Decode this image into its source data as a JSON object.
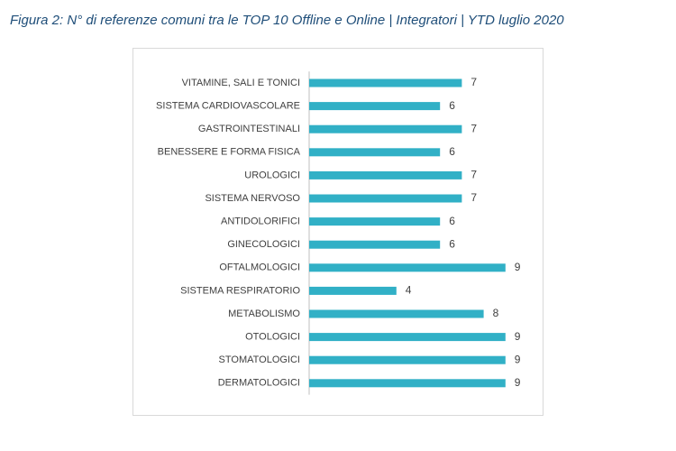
{
  "caption": "Figura 2: N° di referenze comuni tra le TOP 10 Offline e Online | Integratori | YTD luglio 2020",
  "colors": {
    "bar": "#31b0c6",
    "caption": "#1f4e79",
    "text": "#404040",
    "frame": "#d9d9d9"
  },
  "chart_data": {
    "type": "bar",
    "orientation": "horizontal",
    "title": "",
    "xlabel": "",
    "ylabel": "",
    "xlim": [
      0,
      10
    ],
    "grid": false,
    "legend": "none",
    "categories": [
      "VITAMINE, SALI E TONICI",
      "SISTEMA CARDIOVASCOLARE",
      "GASTROINTESTINALI",
      "BENESSERE E FORMA FISICA",
      "UROLOGICI",
      "SISTEMA NERVOSO",
      "ANTIDOLORIFICI",
      "GINECOLOGICI",
      "OFTALMOLOGICI",
      "SISTEMA RESPIRATORIO",
      "METABOLISMO",
      "OTOLOGICI",
      "STOMATOLOGICI",
      "DERMATOLOGICI"
    ],
    "values": [
      7,
      6,
      7,
      6,
      7,
      7,
      6,
      6,
      9,
      4,
      8,
      9,
      9,
      9
    ]
  }
}
